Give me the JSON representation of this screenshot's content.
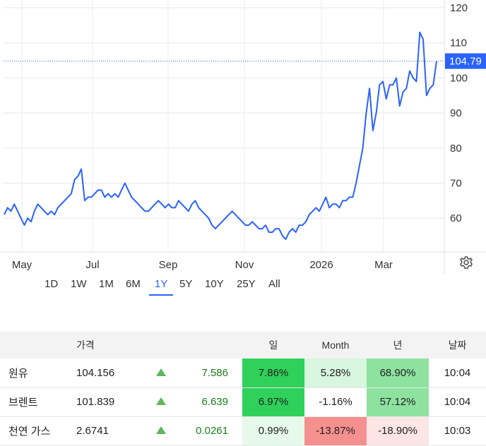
{
  "chart_data": {
    "type": "line",
    "y_ticks": [
      "120",
      "110",
      "100",
      "90",
      "80",
      "70",
      "60"
    ],
    "ylim": [
      50,
      122
    ],
    "x_tick_labels": [
      "May",
      "Jul",
      "Sep",
      "Nov",
      "2026",
      "Mar"
    ],
    "last_value_label": "104.79",
    "last_value": 104.79,
    "line_color": "#2962ff",
    "series": [
      {
        "values": [
          61,
          63,
          62,
          64,
          62,
          60,
          58,
          60,
          59,
          62,
          64,
          63,
          62,
          61,
          62,
          61,
          63,
          64,
          65,
          66,
          67,
          71,
          72,
          74,
          65,
          66,
          66,
          67,
          68,
          68,
          66,
          67,
          66,
          67,
          66,
          68,
          70,
          68,
          66,
          65,
          64,
          63,
          62,
          62,
          63,
          64,
          65,
          64,
          63,
          64,
          63,
          63,
          65,
          64,
          63,
          62,
          64,
          65,
          63,
          62,
          61,
          60,
          58,
          57,
          58,
          59,
          60,
          61,
          62,
          61,
          60,
          59,
          58,
          58,
          59,
          58,
          57,
          57,
          58,
          56,
          56,
          57,
          57,
          55,
          54,
          56,
          57,
          56,
          58,
          58,
          59,
          61,
          62,
          63,
          62,
          64,
          66,
          63,
          64,
          64,
          63,
          65,
          65,
          66,
          66,
          70,
          75,
          80,
          90,
          97,
          85,
          90,
          98,
          99,
          94,
          98,
          98,
          100,
          92,
          96,
          97,
          102,
          100,
          99,
          113,
          111,
          95,
          97,
          98,
          104.79
        ]
      }
    ]
  },
  "ranges": {
    "items": [
      "1D",
      "1W",
      "1M",
      "6M",
      "1Y",
      "5Y",
      "10Y",
      "25Y",
      "All"
    ],
    "active": "1Y"
  },
  "table": {
    "headers": {
      "price": "가격",
      "day": "일",
      "month": "Month",
      "year": "년",
      "date": "날짜"
    },
    "rows": [
      {
        "name": "원유",
        "price": "104.156",
        "change": "7.586",
        "day": "7.86%",
        "month": "5.28%",
        "year": "68.90%",
        "time": "10:04",
        "day_bg": "#2fd15a",
        "month_bg": "#d8f5de",
        "year_bg": "#8ee2a0"
      },
      {
        "name": "브렌트",
        "price": "101.839",
        "change": "6.639",
        "day": "6.97%",
        "month": "-1.16%",
        "year": "57.12%",
        "time": "10:04",
        "day_bg": "#2fd15a",
        "month_bg": "#ffffff",
        "year_bg": "#8ee2a0"
      },
      {
        "name": "천연 가스",
        "price": "2.6741",
        "change": "0.0261",
        "day": "0.99%",
        "month": "-13.87%",
        "year": "-18.90%",
        "time": "10:03",
        "day_bg": "#e6f9ea",
        "month_bg": "#f6908f",
        "year_bg": "#fde5e5"
      }
    ]
  },
  "icons": {
    "settings": "gear-icon"
  }
}
